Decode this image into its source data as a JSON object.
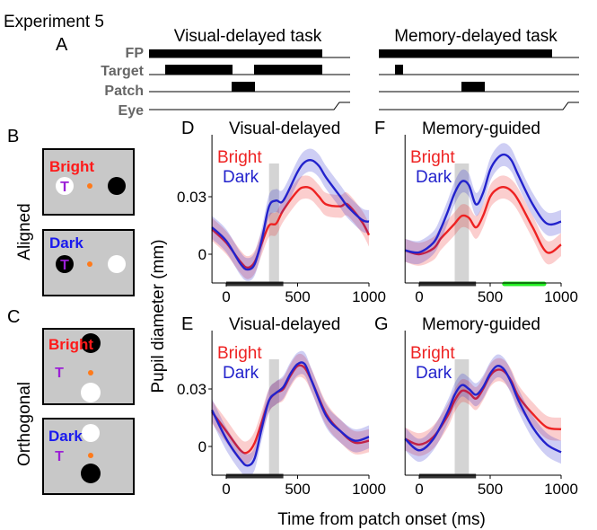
{
  "figure": {
    "experiment_title": "Experiment 5",
    "timeline": {
      "panel_letter": "A",
      "row_labels": [
        "FP",
        "Target",
        "Patch",
        "Eye"
      ],
      "tasks": [
        {
          "title": "Visual-delayed task"
        },
        {
          "title": "Memory-delayed task"
        }
      ]
    },
    "condition_labels": {
      "aligned": "Aligned",
      "orthogonal": "Orthogonal"
    },
    "stim_panels": [
      {
        "letter": "B",
        "word": "Bright",
        "word_color": "#ff1a1a",
        "target_letter": "T"
      },
      {
        "letter": "",
        "word": "Dark",
        "word_color": "#1a1aee",
        "target_letter": "T"
      },
      {
        "letter": "C",
        "word": "Bright",
        "word_color": "#ff1a1a",
        "target_letter": "T"
      },
      {
        "letter": "",
        "word": "Dark",
        "word_color": "#1a1aee",
        "target_letter": "T"
      }
    ],
    "colors": {
      "bright": "#ee2222",
      "dark": "#2222cc",
      "significance": "#22ee22",
      "fixation": "#ff7a1a",
      "target_letter": "#9b1fd6"
    }
  },
  "chart_data": [
    {
      "type": "line",
      "panel": "D",
      "title": "Visual-delayed",
      "legend": [
        "Bright",
        "Dark"
      ],
      "x": [
        -100,
        0,
        100,
        150,
        200,
        250,
        300,
        350,
        400,
        500,
        550,
        600,
        650,
        700,
        800,
        850,
        950,
        1000
      ],
      "series": [
        {
          "name": "Bright",
          "color": "#ee2222",
          "values": [
            0.013,
            0.006,
            -0.004,
            -0.007,
            -0.004,
            0.006,
            0.015,
            0.016,
            0.023,
            0.033,
            0.035,
            0.034,
            0.03,
            0.026,
            0.025,
            0.026,
            0.017,
            0.01
          ]
        },
        {
          "name": "Dark",
          "color": "#2222cc",
          "values": [
            0.014,
            0.007,
            -0.005,
            -0.008,
            -0.005,
            0.008,
            0.025,
            0.028,
            0.028,
            0.043,
            0.048,
            0.049,
            0.046,
            0.04,
            0.03,
            0.025,
            0.018,
            0.017
          ]
        }
      ],
      "shaded_window": [
        300,
        370
      ],
      "significant_spans": [
        [
          270,
          330
        ]
      ],
      "stimulus_bar": [
        0,
        400
      ],
      "ylim": [
        -0.015,
        0.06
      ],
      "yticks": [
        0,
        0.03
      ],
      "xticks": [
        0,
        500,
        1000
      ]
    },
    {
      "type": "line",
      "panel": "F",
      "title": "Memory-guided",
      "legend": [
        "Bright",
        "Dark"
      ],
      "x": [
        -100,
        0,
        100,
        150,
        200,
        250,
        300,
        350,
        400,
        450,
        500,
        550,
        600,
        650,
        700,
        800,
        900,
        1000
      ],
      "series": [
        {
          "name": "Bright",
          "color": "#ee2222",
          "values": [
            0.002,
            0.0,
            0.003,
            0.008,
            0.012,
            0.016,
            0.02,
            0.019,
            0.014,
            0.02,
            0.03,
            0.034,
            0.035,
            0.033,
            0.028,
            0.014,
            0.001,
            0.005
          ]
        },
        {
          "name": "Dark",
          "color": "#2222cc",
          "values": [
            0.002,
            0.001,
            0.006,
            0.013,
            0.022,
            0.032,
            0.038,
            0.036,
            0.026,
            0.032,
            0.044,
            0.05,
            0.052,
            0.049,
            0.041,
            0.026,
            0.016,
            0.017
          ]
        }
      ],
      "shaded_window": [
        250,
        350
      ],
      "significant_spans": [
        [
          200,
          380
        ],
        [
          600,
          880
        ]
      ],
      "stimulus_bar": [
        0,
        400
      ],
      "ylim": [
        -0.015,
        0.06
      ],
      "yticks": [
        0,
        0.03
      ],
      "xticks": [
        0,
        500,
        1000
      ]
    },
    {
      "type": "line",
      "panel": "E",
      "title": "Visual-delayed",
      "legend": [
        "Bright",
        "Dark"
      ],
      "x": [
        -100,
        0,
        100,
        150,
        200,
        250,
        300,
        350,
        400,
        450,
        500,
        550,
        600,
        700,
        800,
        900,
        1000
      ],
      "series": [
        {
          "name": "Bright",
          "color": "#ee2222",
          "values": [
            0.018,
            0.008,
            -0.002,
            -0.003,
            0.002,
            0.013,
            0.024,
            0.028,
            0.03,
            0.037,
            0.042,
            0.041,
            0.034,
            0.017,
            0.008,
            0.002,
            0.003
          ]
        },
        {
          "name": "Dark",
          "color": "#2222cc",
          "values": [
            0.019,
            0.004,
            -0.007,
            -0.01,
            -0.006,
            0.01,
            0.024,
            0.028,
            0.031,
            0.038,
            0.043,
            0.043,
            0.034,
            0.016,
            0.008,
            0.003,
            0.005
          ]
        }
      ],
      "shaded_window": [
        300,
        370
      ],
      "significant_spans": [],
      "stimulus_bar": [
        0,
        400
      ],
      "ylim": [
        -0.015,
        0.06
      ],
      "yticks": [
        0,
        0.03
      ],
      "xticks": [
        0,
        500,
        1000
      ]
    },
    {
      "type": "line",
      "panel": "G",
      "title": "Memory-guided",
      "legend": [
        "Bright",
        "Dark"
      ],
      "x": [
        -100,
        0,
        100,
        200,
        250,
        300,
        350,
        400,
        450,
        500,
        550,
        600,
        650,
        700,
        800,
        900,
        1000
      ],
      "series": [
        {
          "name": "Bright",
          "color": "#ee2222",
          "values": [
            0.004,
            0.001,
            0.005,
            0.016,
            0.024,
            0.029,
            0.028,
            0.025,
            0.03,
            0.037,
            0.04,
            0.039,
            0.034,
            0.026,
            0.017,
            0.01,
            0.009
          ]
        },
        {
          "name": "Dark",
          "color": "#2222cc",
          "values": [
            0.004,
            -0.002,
            0.004,
            0.018,
            0.027,
            0.032,
            0.03,
            0.027,
            0.031,
            0.038,
            0.042,
            0.04,
            0.033,
            0.024,
            0.01,
            0.001,
            -0.003
          ]
        }
      ],
      "shaded_window": [
        250,
        350
      ],
      "significant_spans": [],
      "stimulus_bar": [
        0,
        400
      ],
      "ylim": [
        -0.015,
        0.06
      ],
      "yticks": [
        0,
        0.03
      ],
      "xticks": [
        0,
        500,
        1000
      ]
    }
  ],
  "shared_axes": {
    "ylabel": "Pupil diameter (mm)",
    "xlabel": "Time from patch onset (ms)"
  }
}
